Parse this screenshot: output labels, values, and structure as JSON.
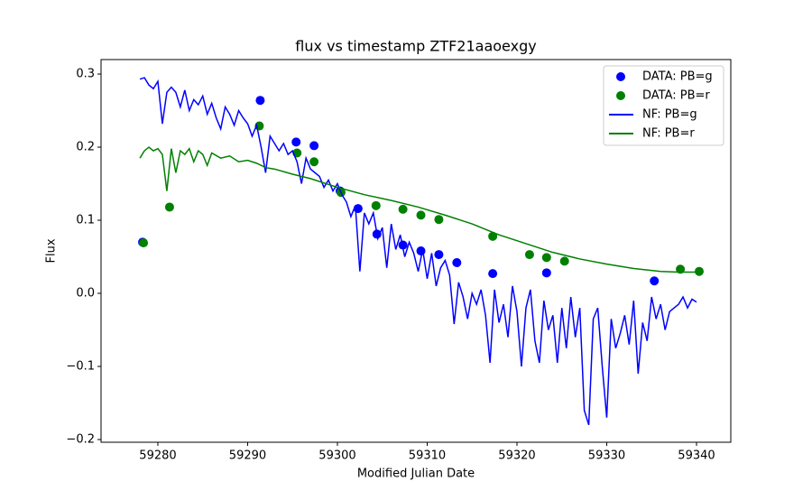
{
  "chart_data": {
    "type": "mixed",
    "title": "flux vs timestamp ZTF21aaoexgy",
    "x_label": "Modified Julian Date",
    "y_label": "Flux",
    "xlim": [
      59273.67,
      59343.82
    ],
    "ylim": [
      -0.2037,
      0.3198
    ],
    "xticks": [
      59280,
      59290,
      59300,
      59310,
      59320,
      59330,
      59340
    ],
    "yticks": [
      {
        "value": -0.2,
        "label": "−0.2"
      },
      {
        "value": -0.1,
        "label": "−0.1"
      },
      {
        "value": 0,
        "label": "0.0"
      },
      0.1,
      0.2,
      0.3
    ],
    "legend": "upper right",
    "series": [
      {
        "name": "DATA: PB=g",
        "type": "scatter",
        "color": "#0000ff",
        "x": [
          59278.3,
          59291.4,
          59295.4,
          59297.4,
          59300.3,
          59302.3,
          59304.4,
          59307.3,
          59309.3,
          59311.3,
          59313.3,
          59317.3,
          59323.3,
          59335.3
        ],
        "values": [
          0.07,
          0.264,
          0.207,
          0.202,
          0.14,
          0.116,
          0.081,
          0.066,
          0.058,
          0.053,
          0.042,
          0.027,
          0.028,
          0.017
        ]
      },
      {
        "name": "DATA: PB=r",
        "type": "scatter",
        "color": "#008000",
        "x": [
          59278.4,
          59281.3,
          59291.3,
          59295.5,
          59297.4,
          59300.4,
          59304.3,
          59307.3,
          59309.3,
          59311.3,
          59317.3,
          59321.4,
          59323.3,
          59325.3,
          59338.2,
          59340.3
        ],
        "values": [
          0.069,
          0.118,
          0.229,
          0.192,
          0.18,
          0.138,
          0.12,
          0.115,
          0.107,
          0.101,
          0.078,
          0.053,
          0.049,
          0.044,
          0.033,
          0.03
        ]
      },
      {
        "name": "NF: PB=g",
        "type": "line",
        "color": "#0000ff",
        "x": [
          59278,
          59278.5,
          59279,
          59279.5,
          59280,
          59280.5,
          59281,
          59281.5,
          59282,
          59282.5,
          59283,
          59283.5,
          59284,
          59284.5,
          59285,
          59285.5,
          59286,
          59286.5,
          59287,
          59287.5,
          59288,
          59288.5,
          59289,
          59289.5,
          59290,
          59290.5,
          59291,
          59291.5,
          59292,
          59292.5,
          59293,
          59293.5,
          59294,
          59294.5,
          59295,
          59295.5,
          59296,
          59296.5,
          59297,
          59297.5,
          59298,
          59298.5,
          59299,
          59299.5,
          59300,
          59300.5,
          59301,
          59301.5,
          59302,
          59302.5,
          59303,
          59303.5,
          59304,
          59304.5,
          59305,
          59305.5,
          59306,
          59306.5,
          59307,
          59307.5,
          59308,
          59308.5,
          59309,
          59309.5,
          59310,
          59310.5,
          59311,
          59311.5,
          59312,
          59312.5,
          59313,
          59313.5,
          59314,
          59314.5,
          59315,
          59315.5,
          59316,
          59316.5,
          59317,
          59317.5,
          59318,
          59318.5,
          59319,
          59319.5,
          59320,
          59320.5,
          59321,
          59321.5,
          59322,
          59322.5,
          59323,
          59323.5,
          59324,
          59324.5,
          59325,
          59325.5,
          59326,
          59326.5,
          59327,
          59327.5,
          59328,
          59328.5,
          59329,
          59329.5,
          59330,
          59330.5,
          59331,
          59331.5,
          59332,
          59332.5,
          59333,
          59333.5,
          59334,
          59334.5,
          59335,
          59335.5,
          59336,
          59336.5,
          59337,
          59337.5,
          59338,
          59338.5,
          59339,
          59339.5,
          59340
        ],
        "values": [
          0.293,
          0.295,
          0.285,
          0.28,
          0.29,
          0.232,
          0.275,
          0.282,
          0.275,
          0.255,
          0.278,
          0.25,
          0.265,
          0.258,
          0.27,
          0.245,
          0.26,
          0.24,
          0.225,
          0.255,
          0.245,
          0.23,
          0.25,
          0.24,
          0.232,
          0.215,
          0.23,
          0.2,
          0.165,
          0.215,
          0.205,
          0.195,
          0.205,
          0.19,
          0.195,
          0.18,
          0.15,
          0.185,
          0.17,
          0.165,
          0.16,
          0.145,
          0.155,
          0.14,
          0.15,
          0.135,
          0.125,
          0.105,
          0.12,
          0.03,
          0.11,
          0.095,
          0.11,
          0.075,
          0.09,
          0.035,
          0.095,
          0.06,
          0.08,
          0.05,
          0.07,
          0.055,
          0.03,
          0.06,
          0.02,
          0.055,
          0.01,
          0.035,
          0.045,
          0.025,
          -0.042,
          0.015,
          -0.005,
          -0.035,
          0.0,
          -0.015,
          0.005,
          -0.03,
          -0.095,
          0.005,
          -0.04,
          -0.015,
          -0.06,
          0.01,
          -0.025,
          -0.1,
          -0.02,
          0.005,
          -0.065,
          -0.095,
          -0.01,
          -0.05,
          -0.03,
          -0.095,
          -0.02,
          -0.075,
          -0.005,
          -0.06,
          -0.02,
          -0.16,
          -0.18,
          -0.035,
          -0.02,
          -0.1,
          -0.17,
          -0.035,
          -0.075,
          -0.055,
          -0.03,
          -0.07,
          -0.01,
          -0.11,
          -0.04,
          -0.065,
          -0.005,
          -0.035,
          -0.015,
          -0.05,
          -0.025,
          -0.02,
          -0.015,
          -0.005,
          -0.02,
          -0.008,
          -0.012
        ]
      },
      {
        "name": "NF: PB=r",
        "type": "line",
        "color": "#008000",
        "x": [
          59278,
          59278.5,
          59279,
          59279.5,
          59280,
          59280.5,
          59281,
          59281.5,
          59282,
          59282.5,
          59283,
          59283.5,
          59284,
          59284.5,
          59285,
          59285.5,
          59286,
          59287,
          59288,
          59289,
          59290,
          59291,
          59292,
          59293,
          59295,
          59297,
          59300,
          59303,
          59306,
          59309,
          59312,
          59315,
          59318,
          59321,
          59324,
          59327,
          59330,
          59333,
          59336,
          59338,
          59340
        ],
        "values": [
          0.185,
          0.195,
          0.2,
          0.195,
          0.198,
          0.19,
          0.14,
          0.198,
          0.165,
          0.195,
          0.19,
          0.198,
          0.18,
          0.195,
          0.19,
          0.175,
          0.192,
          0.185,
          0.188,
          0.18,
          0.182,
          0.178,
          0.172,
          0.17,
          0.163,
          0.157,
          0.145,
          0.135,
          0.127,
          0.118,
          0.107,
          0.095,
          0.08,
          0.068,
          0.056,
          0.047,
          0.04,
          0.034,
          0.03,
          0.029,
          0.029
        ]
      }
    ]
  }
}
